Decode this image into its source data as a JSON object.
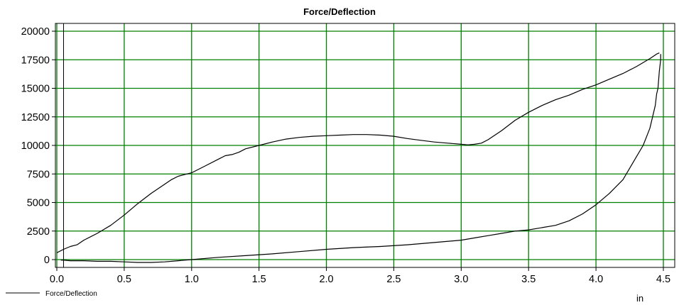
{
  "chart_data": {
    "type": "line",
    "title": "Force/Deflection",
    "xlabel": "in",
    "ylabel": "",
    "xlim": [
      0.0,
      4.5
    ],
    "ylim": [
      -600,
      20500
    ],
    "x_ticks": [
      "0.0",
      "0.5",
      "1.0",
      "1.5",
      "2.0",
      "2.5",
      "3.0",
      "3.5",
      "4.0",
      "4.5"
    ],
    "y_ticks": [
      "0",
      "2500",
      "5000",
      "7500",
      "10000",
      "12500",
      "15000",
      "17500",
      "20000"
    ],
    "grid": true,
    "legend": {
      "placement": "bottom-left",
      "entries": [
        "Force/Deflection"
      ]
    },
    "colors": {
      "grid": "#008000",
      "line": "#000000",
      "background": "#ffffff"
    },
    "series": [
      {
        "name": "Force/Deflection",
        "loading": {
          "x": [
            0.0,
            0.05,
            0.1,
            0.15,
            0.2,
            0.3,
            0.4,
            0.5,
            0.6,
            0.7,
            0.8,
            0.85,
            0.9,
            1.0,
            1.1,
            1.2,
            1.25,
            1.3,
            1.35,
            1.4,
            1.5,
            1.6,
            1.7,
            1.8,
            1.9,
            2.0,
            2.1,
            2.2,
            2.3,
            2.4,
            2.5,
            2.6,
            2.7,
            2.8,
            2.9,
            3.0,
            3.05,
            3.1,
            3.15,
            3.2,
            3.3,
            3.4,
            3.5,
            3.6,
            3.7,
            3.8,
            3.9,
            4.0,
            4.1,
            4.2,
            4.3,
            4.4,
            4.45,
            4.47
          ],
          "y": [
            600,
            900,
            1150,
            1300,
            1700,
            2300,
            3000,
            3900,
            4900,
            5800,
            6600,
            7000,
            7300,
            7600,
            8200,
            8800,
            9100,
            9200,
            9400,
            9700,
            10000,
            10300,
            10550,
            10700,
            10800,
            10850,
            10900,
            10950,
            10950,
            10900,
            10800,
            10600,
            10450,
            10300,
            10200,
            10100,
            10050,
            10100,
            10200,
            10500,
            11300,
            12200,
            12900,
            13500,
            14000,
            14400,
            14900,
            15300,
            15800,
            16300,
            16900,
            17600,
            18000,
            18100
          ]
        },
        "unloading": {
          "x": [
            4.48,
            4.48,
            4.47,
            4.46,
            4.45,
            4.44,
            4.42,
            4.4,
            4.35,
            4.3,
            4.2,
            4.1,
            4.0,
            3.9,
            3.8,
            3.7,
            3.6,
            3.5,
            3.4,
            3.3,
            3.2,
            3.1,
            3.0,
            2.8,
            2.6,
            2.4,
            2.2,
            2.0,
            1.8,
            1.6,
            1.4,
            1.2,
            1.0,
            0.9,
            0.8,
            0.7,
            0.6,
            0.5,
            0.4,
            0.3,
            0.2,
            0.1,
            0.05,
            0.03
          ],
          "y": [
            18000,
            17500,
            16500,
            15000,
            14500,
            13500,
            12500,
            11500,
            10000,
            9000,
            7000,
            5800,
            4800,
            4000,
            3400,
            3000,
            2800,
            2600,
            2500,
            2300,
            2100,
            1900,
            1700,
            1500,
            1300,
            1150,
            1050,
            900,
            700,
            500,
            350,
            200,
            0,
            -100,
            -200,
            -250,
            -250,
            -200,
            -150,
            -150,
            -100,
            -100,
            -50,
            -50
          ]
        }
      }
    ]
  }
}
